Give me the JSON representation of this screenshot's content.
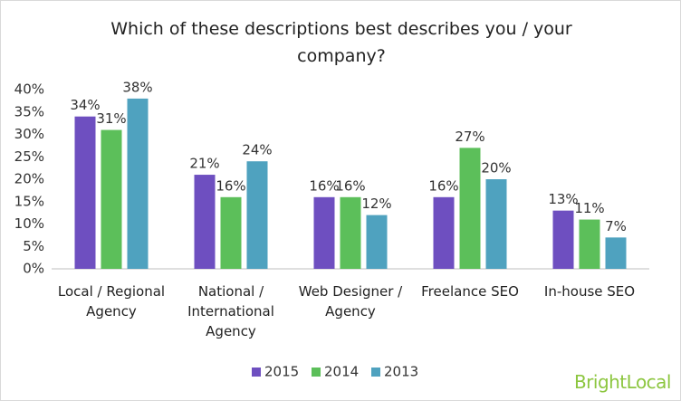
{
  "chart_data": {
    "type": "bar",
    "title": "Which of these descriptions best describes you / your company?",
    "categories": [
      "Local / Regional Agency",
      "National / International Agency",
      "Web Designer / Agency",
      "Freelance SEO",
      "In-house SEO"
    ],
    "series": [
      {
        "name": "2015",
        "color": "#6e4fc0",
        "values": [
          34,
          21,
          16,
          16,
          13
        ],
        "value_labels": [
          "34%",
          "21%",
          "16%",
          "16%",
          "13%"
        ]
      },
      {
        "name": "2014",
        "color": "#5cbf5a",
        "values": [
          31,
          16,
          16,
          27,
          11
        ],
        "value_labels": [
          "31%",
          "16%",
          "16%",
          "27%",
          "11%"
        ]
      },
      {
        "name": "2013",
        "color": "#4fa2bf",
        "values": [
          38,
          24,
          12,
          20,
          7
        ],
        "value_labels": [
          "38%",
          "24%",
          "12%",
          "20%",
          "7%"
        ]
      }
    ],
    "ylim": [
      0,
      40
    ],
    "yticks": [
      {
        "value": 0,
        "label": "0%"
      },
      {
        "value": 5,
        "label": "5%"
      },
      {
        "value": 10,
        "label": "10%"
      },
      {
        "value": 15,
        "label": "15%"
      },
      {
        "value": 20,
        "label": "20%"
      },
      {
        "value": 25,
        "label": "25%"
      },
      {
        "value": 30,
        "label": "30%"
      },
      {
        "value": 35,
        "label": "35%"
      },
      {
        "value": 40,
        "label": "40%"
      }
    ],
    "grid": false,
    "legend": "bottom",
    "brand": "BrightLocal"
  }
}
